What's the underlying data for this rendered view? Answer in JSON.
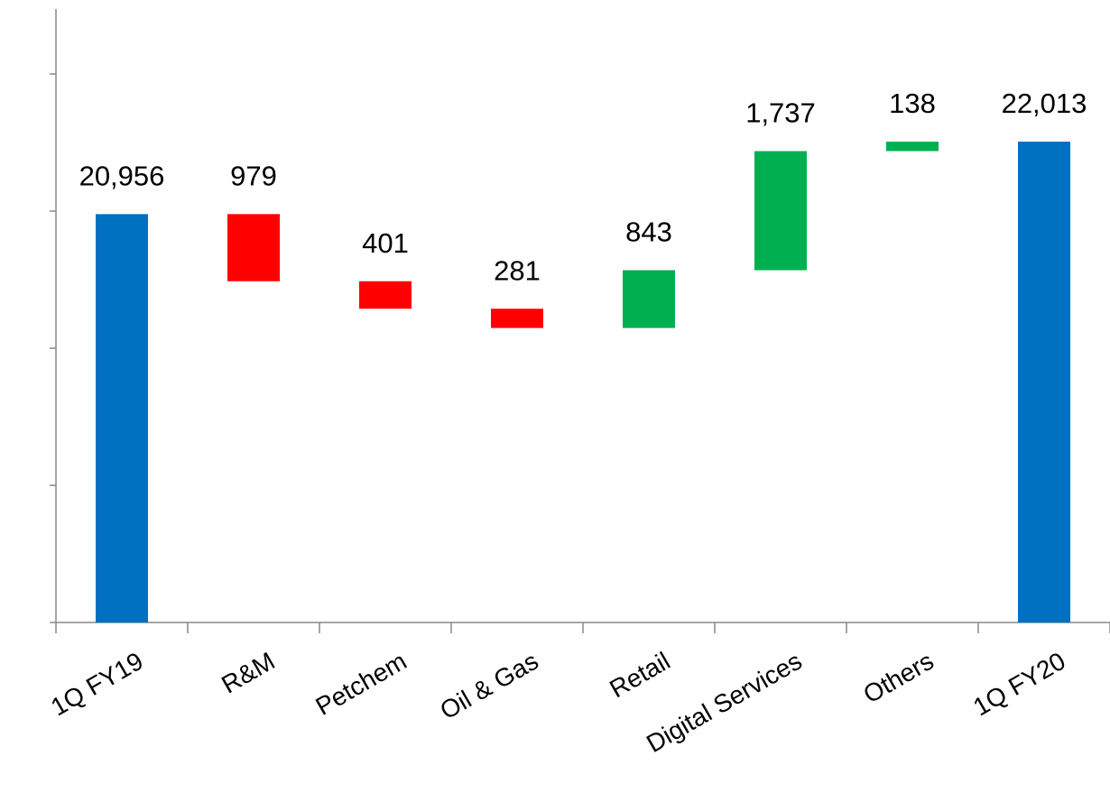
{
  "chart_data": {
    "type": "waterfall",
    "categories": [
      "1Q FY19",
      "R&M",
      "Petchem",
      "Oil & Gas",
      "Retail",
      "Digital Services",
      "Others",
      "1Q FY20"
    ],
    "values": [
      20956,
      -979,
      -401,
      -281,
      843,
      1737,
      138,
      22013
    ],
    "value_labels": [
      "20,956",
      "979",
      "401",
      "281",
      "843",
      "1,737",
      "138",
      "22,013"
    ],
    "colors": {
      "total": "#0070c0",
      "increase": "#00b050",
      "decrease": "#ff0000"
    },
    "ylim": [
      15000,
      24000
    ],
    "yticks": [
      15000,
      17000,
      19000,
      21000,
      23000
    ]
  }
}
